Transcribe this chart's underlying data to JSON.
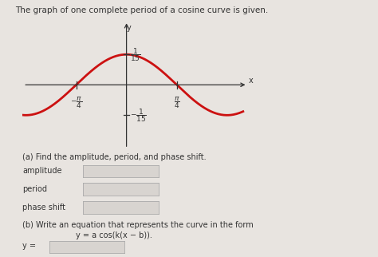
{
  "title": "The graph of one complete period of a cosine curve is given.",
  "title_fontsize": 7.5,
  "amplitude": 0.06667,
  "curve_color": "#cc1111",
  "curve_linewidth": 2.0,
  "axis_color": "#333333",
  "background_color": "#e8e4e0",
  "box_color": "#d8d4d0",
  "box_edge_color": "#aaaaaa",
  "text_color": "#333333",
  "text_fontsize": 7.0,
  "label_fontsize": 7.0,
  "text_a": "(a) Find the amplitude, period, and phase shift.",
  "text_b": "(b) Write an equation that represents the curve in the form",
  "text_b2": "y = a cos(k(x − b)).",
  "label_amplitude": "amplitude",
  "label_period": "period",
  "label_phase_shift": "phase shift",
  "text_y_eq": "y ="
}
